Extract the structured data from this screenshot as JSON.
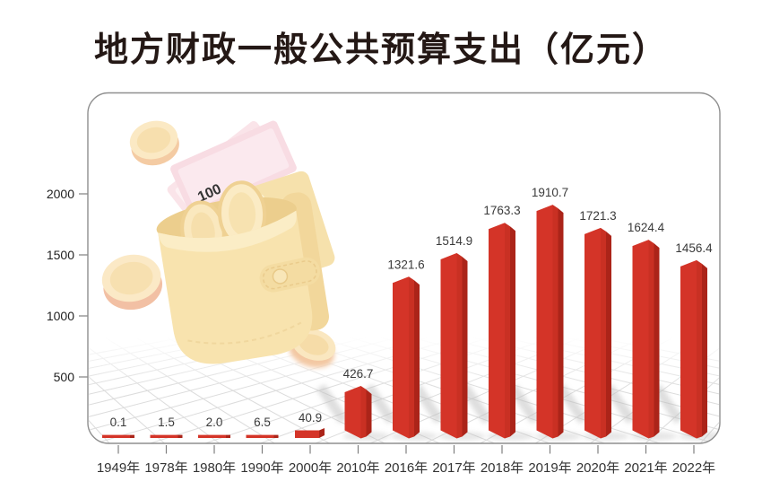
{
  "title": "地方财政一般公共预算支出（亿元）",
  "colors": {
    "bar_front": "#D43428",
    "bar_mid": "#C93023",
    "bar_side": "#AB2419",
    "frame_border": "#8F8F8F",
    "grid_line": "#DCDCDC",
    "tick": "#808080",
    "shadow": "#BDBDBD"
  },
  "decor": {
    "illustration": "wallet-with-banknotes-and-coins",
    "banknote_label": "100"
  },
  "chart_data": {
    "type": "bar",
    "title": "地方财政一般公共预算支出（亿元）",
    "unit": "亿元",
    "categories": [
      "1949年",
      "1978年",
      "1980年",
      "1990年",
      "2000年",
      "2010年",
      "2016年",
      "2017年",
      "2018年",
      "2019年",
      "2020年",
      "2021年",
      "2022年"
    ],
    "values": [
      0.1,
      1.5,
      2.0,
      6.5,
      40.9,
      426.7,
      1321.6,
      1514.9,
      1763.3,
      1910.7,
      1721.3,
      1624.4,
      1456.4
    ],
    "value_labels": [
      "0.1",
      "1.5",
      "2.0",
      "6.5",
      "40.9",
      "426.7",
      "1321.6",
      "1514.9",
      "1763.3",
      "1910.7",
      "1721.3",
      "1624.4",
      "1456.4"
    ],
    "xlabel": "",
    "ylabel": "",
    "yticks": [
      500,
      1000,
      1500,
      2000
    ],
    "ylim": [
      0,
      2100
    ],
    "legend": "none",
    "grid": "perspective floor grid",
    "bar_style": "3d red columns with peaked tops"
  }
}
